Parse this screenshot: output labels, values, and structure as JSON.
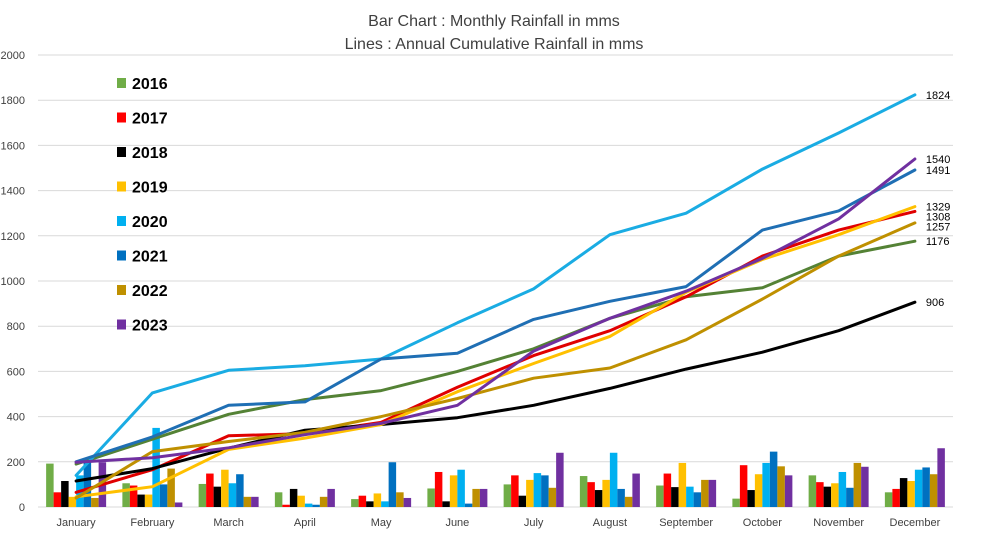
{
  "chart_data": {
    "type": "bar+line",
    "title": "Bar Chart : Monthly Rainfall in mms",
    "subtitle": "Lines : Annual Cumulative Rainfall in mms",
    "xlabel": "",
    "ylabel": "",
    "ylim": [
      0,
      2000
    ],
    "yticks": [
      0,
      200,
      400,
      600,
      800,
      1000,
      1200,
      1400,
      1600,
      1800,
      2000
    ],
    "grid": true,
    "legend_position": "top-left",
    "categories": [
      "January",
      "February",
      "March",
      "April",
      "May",
      "June",
      "July",
      "August",
      "September",
      "October",
      "November",
      "December"
    ],
    "series": [
      {
        "name": "2016",
        "bar_color": "#70AD47",
        "line_color": "#548235",
        "monthly": [
          192,
          105,
          102,
          65,
          35,
          82,
          100,
          137,
          95,
          37,
          140,
          65
        ],
        "cumulative": [
          190,
          300,
          410,
          475,
          515,
          600,
          700,
          835,
          930,
          970,
          1110,
          1176
        ],
        "end_label": "1176"
      },
      {
        "name": "2017",
        "bar_color": "#FF0000",
        "line_color": "#E00000",
        "monthly": [
          65,
          95,
          148,
          10,
          50,
          155,
          140,
          110,
          148,
          185,
          110,
          80
        ],
        "cumulative": [
          65,
          165,
          315,
          325,
          375,
          530,
          670,
          780,
          930,
          1110,
          1225,
          1308
        ],
        "end_label": "1308"
      },
      {
        "name": "2018",
        "bar_color": "#000000",
        "line_color": "#000000",
        "monthly": [
          115,
          55,
          90,
          80,
          25,
          25,
          50,
          75,
          88,
          75,
          90,
          128
        ],
        "cumulative": [
          115,
          170,
          260,
          340,
          365,
          395,
          450,
          525,
          610,
          685,
          780,
          906
        ],
        "end_label": "906"
      },
      {
        "name": "2019",
        "bar_color": "#FFC000",
        "line_color": "#FFC000",
        "monthly": [
          45,
          55,
          165,
          50,
          60,
          140,
          120,
          120,
          195,
          145,
          105,
          115
        ],
        "cumulative": [
          45,
          90,
          255,
          305,
          365,
          510,
          635,
          755,
          950,
          1095,
          1205,
          1329
        ],
        "end_label": "1329"
      },
      {
        "name": "2020",
        "bar_color": "#00B0F0",
        "line_color": "#1AACE3",
        "monthly": [
          140,
          350,
          105,
          15,
          25,
          165,
          150,
          240,
          90,
          195,
          155,
          165
        ],
        "cumulative": [
          140,
          505,
          605,
          625,
          655,
          815,
          965,
          1205,
          1300,
          1495,
          1655,
          1824
        ],
        "end_label": "1824"
      },
      {
        "name": "2021",
        "bar_color": "#0070C0",
        "line_color": "#1F6FB4",
        "monthly": [
          200,
          100,
          145,
          10,
          198,
          15,
          140,
          80,
          65,
          245,
          85,
          175
        ],
        "cumulative": [
          200,
          310,
          450,
          465,
          655,
          680,
          830,
          910,
          975,
          1225,
          1310,
          1491
        ],
        "end_label": "1491"
      },
      {
        "name": "2022",
        "bar_color": "#BF9000",
        "line_color": "#BF9000",
        "monthly": [
          40,
          170,
          45,
          45,
          65,
          80,
          85,
          45,
          120,
          180,
          195,
          145
        ],
        "cumulative": [
          40,
          245,
          290,
          330,
          400,
          480,
          570,
          615,
          740,
          920,
          1110,
          1257
        ],
        "end_label": "1257"
      },
      {
        "name": "2023",
        "bar_color": "#7030A0",
        "line_color": "#7030A0",
        "monthly": [
          198,
          20,
          45,
          80,
          40,
          80,
          240,
          148,
          120,
          140,
          178,
          260
        ],
        "cumulative": [
          198,
          218,
          262,
          320,
          370,
          450,
          690,
          835,
          955,
          1100,
          1275,
          1540
        ],
        "end_label": "1540"
      }
    ]
  }
}
